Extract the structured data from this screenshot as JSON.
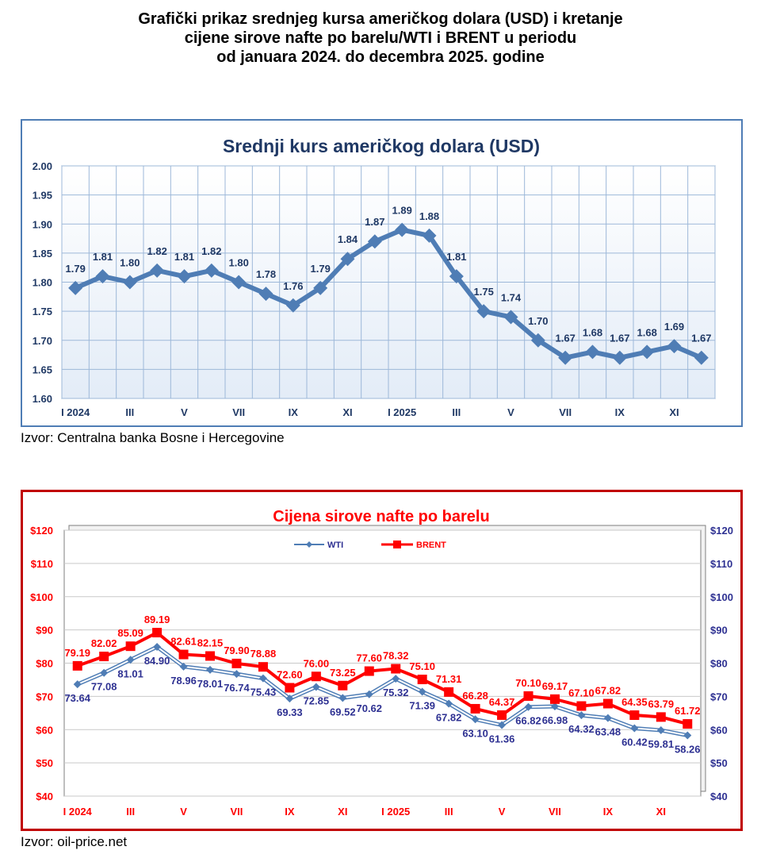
{
  "page": {
    "title_lines": [
      "Grafički prikaz srednjeg kursa američkog dolara (USD) i kretanje",
      "cijene sirove nafte po barelu/WTI i BRENT u periodu",
      "od januara 2024. do decembra 2025. godine"
    ],
    "source_usd": "Izvor: Centralna banka Bosne i Hercegovine",
    "source_oil": "Izvor: oil-price.net"
  },
  "colors": {
    "usd_line": "#4f7db5",
    "usd_title": "#1f3864",
    "wti": "#4f7db5",
    "wti_label": "#2e3192",
    "brent": "#ff0000",
    "oil_title": "#ff0000",
    "grid_usd": "#9db8d9",
    "grid_oil": "#c9c9c9"
  },
  "chart_data": [
    {
      "type": "line",
      "title": "Srednji kurs američkog dolara (USD)",
      "xlabel": "",
      "ylabel": "",
      "x_ticks": [
        "I 2024",
        "III",
        "V",
        "VII",
        "IX",
        "XI",
        "I 2025",
        "III",
        "V",
        "VII",
        "IX",
        "XI"
      ],
      "ylim": [
        1.6,
        2.0
      ],
      "y_ticks": [
        "1.60",
        "1.65",
        "1.70",
        "1.75",
        "1.80",
        "1.85",
        "1.90",
        "1.95",
        "2.00"
      ],
      "grid": true,
      "series": [
        {
          "name": "USD",
          "values": [
            1.79,
            1.81,
            1.8,
            1.82,
            1.81,
            1.82,
            1.8,
            1.78,
            1.76,
            1.79,
            1.84,
            1.87,
            1.89,
            1.88,
            1.81,
            1.75,
            1.74,
            1.7,
            1.67,
            1.68,
            1.67,
            1.68,
            1.69,
            1.67
          ],
          "labels": [
            "1.79",
            "1.81",
            "1.80",
            "1.82",
            "1.81",
            "1.82",
            "1.80",
            "1.78",
            "1.76",
            "1.79",
            "1.84",
            "1.87",
            "1.89",
            "1.88",
            "1.81",
            "1.75",
            "1.74",
            "1.70",
            "1.67",
            "1.68",
            "1.67",
            "1.68",
            "1.69",
            "1.67"
          ]
        }
      ]
    },
    {
      "type": "line",
      "title": "Cijena sirove nafte po barelu",
      "xlabel": "",
      "ylabel": "",
      "x_ticks": [
        "I 2024",
        "III",
        "V",
        "VII",
        "IX",
        "XI",
        "I 2025",
        "III",
        "V",
        "VII",
        "IX",
        "XI"
      ],
      "ylim": [
        40,
        120
      ],
      "y_ticks": [
        "$40",
        "$50",
        "$60",
        "$70",
        "$80",
        "$90",
        "$100",
        "$110",
        "$120"
      ],
      "grid": true,
      "legend": "top-center",
      "series": [
        {
          "name": "WTI",
          "values": [
            73.64,
            77.08,
            81.01,
            84.9,
            78.96,
            78.01,
            76.74,
            75.43,
            69.33,
            72.85,
            69.52,
            70.62,
            75.32,
            71.39,
            67.82,
            63.1,
            61.36,
            66.82,
            66.98,
            64.32,
            63.48,
            60.42,
            59.81,
            58.26
          ],
          "labels": [
            "73.64",
            "77.08",
            "81.01",
            "84.90",
            "78.96",
            "78.01",
            "76.74",
            "75.43",
            "69.33",
            "72.85",
            "69.52",
            "70.62",
            "75.32",
            "71.39",
            "67.82",
            "63.10",
            "61.36",
            "66.82",
            "66.98",
            "64.32",
            "63.48",
            "60.42",
            "59.81",
            "58.26"
          ]
        },
        {
          "name": "BRENT",
          "values": [
            79.19,
            82.02,
            85.09,
            89.19,
            82.61,
            82.15,
            79.9,
            78.88,
            72.6,
            76.0,
            73.25,
            77.6,
            78.32,
            75.1,
            71.31,
            66.28,
            64.37,
            70.1,
            69.17,
            67.1,
            67.82,
            64.35,
            63.79,
            61.72
          ],
          "labels": [
            "79.19",
            "82.02",
            "85.09",
            "89.19",
            "82.61",
            "82.15",
            "79.90",
            "78.88",
            "72.60",
            "76.00",
            "73.25",
            "77.60",
            "78.32",
            "75.10",
            "71.31",
            "66.28",
            "64.37",
            "70.10",
            "69.17",
            "67.10",
            "67.82",
            "64.35",
            "63.79",
            "61.72"
          ]
        }
      ]
    }
  ]
}
